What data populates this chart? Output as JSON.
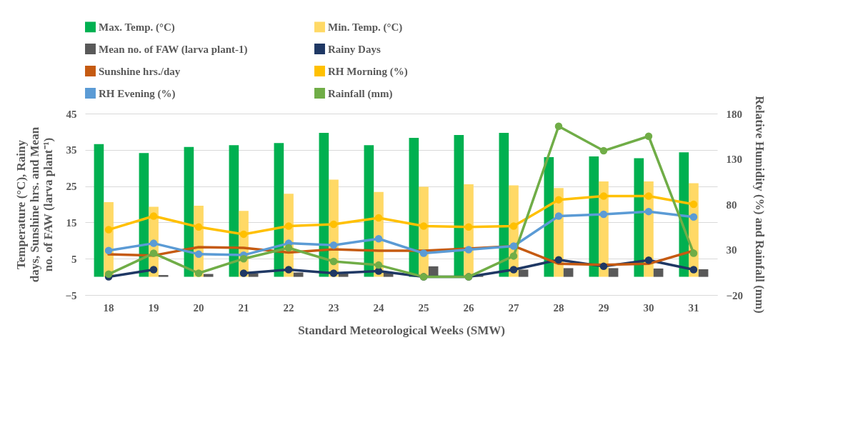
{
  "chart_data": {
    "type": "bar",
    "xlabel": "Standard Meteorological Weeks (SMW)",
    "ylabel": "Temperature (°C), Rainy days, Sunshine hrs. and Mean no. of FAW (larva plant⁻¹)",
    "y2label": "Relative Humidity (%) and Rainfall (mm)",
    "categories": [
      "18",
      "19",
      "20",
      "21",
      "22",
      "23",
      "24",
      "25",
      "26",
      "27",
      "28",
      "29",
      "30",
      "31"
    ],
    "series": [
      {
        "name": "Max. Temp. (°C)",
        "color": "#00b050",
        "values": [
          36.6,
          34.1,
          35.8,
          36.3,
          36.9,
          39.7,
          36.3,
          38.3,
          39.1,
          39.7,
          33.0,
          33.2,
          32.7,
          34.3
        ]
      },
      {
        "name": "Min. Temp. (°C)",
        "color": "#ffd966",
        "values": [
          20.6,
          19.3,
          19.6,
          18.2,
          22.9,
          26.8,
          23.4,
          24.8,
          25.5,
          25.2,
          24.5,
          26.3,
          26.3,
          25.8
        ]
      },
      {
        "name": "Mean no. of FAW (larva plant-1)",
        "color": "#595959",
        "values": [
          null,
          0.5,
          0.8,
          1.0,
          1.2,
          1.0,
          1.1,
          2.9,
          0.3,
          2.0,
          2.4,
          2.4,
          2.3,
          2.1
        ]
      },
      {
        "name": "Rainy Days",
        "type": "line",
        "marker": "circle",
        "color": "#1f3864",
        "values": [
          0,
          2.0,
          null,
          1.0,
          2.0,
          1.0,
          1.6,
          0,
          0,
          2.0,
          4.7,
          2.9,
          4.6,
          2.0
        ]
      },
      {
        "name": "Sunshine hrs./day",
        "type": "line",
        "marker": "none",
        "color": "#c55a11",
        "values": [
          6.2,
          5.9,
          8.2,
          8.0,
          6.7,
          7.6,
          7.2,
          7.2,
          7.8,
          8.5,
          3.6,
          3.3,
          3.6,
          7.2
        ]
      },
      {
        "name": "RH Morning (%)",
        "type": "line",
        "marker": "circle",
        "axis": "y2",
        "color": "#ffc000",
        "values": [
          52,
          67,
          55,
          47,
          56,
          58,
          65,
          56,
          55,
          56,
          85,
          89,
          89,
          80
        ]
      },
      {
        "name": "RH Evening (%)",
        "type": "line",
        "marker": "circle",
        "axis": "y2",
        "color": "#5b9bd5",
        "values": [
          29,
          37,
          25,
          24,
          37,
          35,
          42,
          26,
          30,
          34,
          67,
          69,
          72,
          66
        ]
      },
      {
        "name": "Rainfall (mm)",
        "type": "line",
        "marker": "circle",
        "axis": "y2",
        "color": "#70ad47",
        "values": [
          3,
          26,
          4,
          20,
          32,
          17,
          13,
          0,
          0,
          23,
          166,
          139,
          155,
          26
        ]
      }
    ],
    "ylim": [
      -5,
      45
    ],
    "yticks": [
      -5,
      5,
      15,
      25,
      35,
      45
    ],
    "y2lim": [
      -20,
      180
    ],
    "y2ticks": [
      -20,
      30,
      80,
      130,
      180
    ],
    "grid": "y",
    "legend": "top"
  }
}
